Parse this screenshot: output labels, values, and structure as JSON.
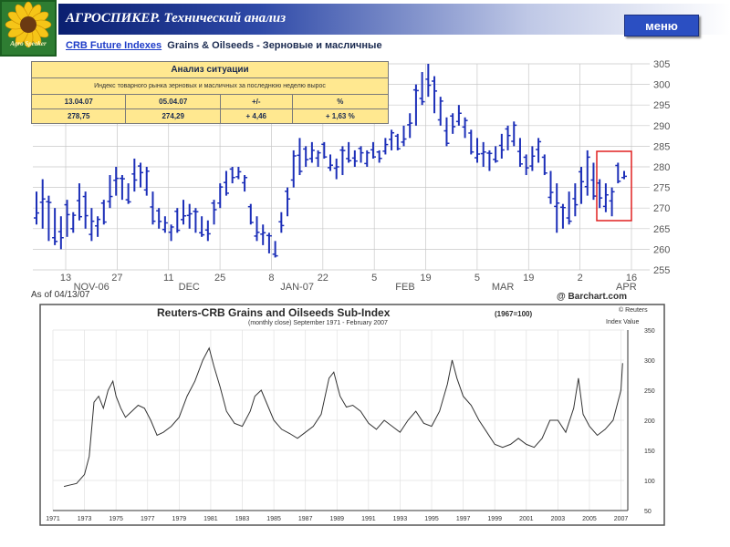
{
  "header": {
    "logo_text": "Agro Speaker",
    "app_title": "АГРОСПИКЕР. Технический анализ",
    "menu_label": "меню",
    "subtitle_link": "CRB Future Indexes",
    "subtitle_text": "Grains & Oilseeds - Зерновые и масличные"
  },
  "info_table": {
    "title": "Анализ ситуации",
    "description": "Индекс товарного рынка зерновых и масличных за последнюю неделю вырос",
    "headers": [
      "13.04.07",
      "05.04.07",
      "+/-",
      "%"
    ],
    "values": [
      "278,75",
      "274,29",
      "+ 4,46",
      "+ 1,63 %"
    ]
  },
  "colors": {
    "price_bars": "#1c2fb8",
    "highlight_box": "#e02020",
    "title_bar": "#0a1f70"
  },
  "chart_data": [
    {
      "type": "ohlc",
      "as_of": "As of 04/13/07",
      "watermark": "@ Barchart.com",
      "ylim": [
        255,
        305
      ],
      "yticks": [
        255,
        260,
        265,
        270,
        275,
        280,
        285,
        290,
        295,
        300,
        305
      ],
      "xticks": [
        "13",
        "27",
        "11",
        "25",
        "8",
        "22",
        "5",
        "19",
        "5",
        "19",
        "2",
        "16"
      ],
      "month_labels": [
        "NOV-06",
        "DEC",
        "JAN-07",
        "FEB",
        "MAR",
        "APR"
      ],
      "bars": [
        [
          274,
          266
        ],
        [
          277,
          265
        ],
        [
          273,
          262
        ],
        [
          270,
          261
        ],
        [
          268,
          260
        ],
        [
          272,
          263
        ],
        [
          269,
          264
        ],
        [
          276,
          267
        ],
        [
          274,
          265
        ],
        [
          270,
          262
        ],
        [
          268,
          263
        ],
        [
          272,
          266
        ],
        [
          278,
          270
        ],
        [
          280,
          273
        ],
        [
          278,
          272
        ],
        [
          276,
          271
        ],
        [
          282,
          274
        ],
        [
          281,
          275
        ],
        [
          280,
          273
        ],
        [
          274,
          266
        ],
        [
          270,
          265
        ],
        [
          268,
          264
        ],
        [
          266,
          262
        ],
        [
          270,
          264
        ],
        [
          272,
          266
        ],
        [
          271,
          265
        ],
        [
          270,
          264
        ],
        [
          268,
          263
        ],
        [
          267,
          262
        ],
        [
          272,
          266
        ],
        [
          276,
          270
        ],
        [
          279,
          273
        ],
        [
          280,
          276
        ],
        [
          280,
          277
        ],
        [
          278,
          274
        ],
        [
          271,
          266
        ],
        [
          268,
          262
        ],
        [
          266,
          261
        ],
        [
          264,
          259
        ],
        [
          262,
          258
        ],
        [
          269,
          264
        ],
        [
          275,
          268
        ],
        [
          284,
          275
        ],
        [
          287,
          278
        ],
        [
          285,
          280
        ],
        [
          286,
          281
        ],
        [
          284,
          280
        ],
        [
          286,
          282
        ],
        [
          283,
          279
        ],
        [
          282,
          277
        ],
        [
          285,
          278
        ],
        [
          286,
          281
        ],
        [
          284,
          280
        ],
        [
          285,
          281
        ],
        [
          284,
          280
        ],
        [
          286,
          282
        ],
        [
          284,
          281
        ],
        [
          287,
          283
        ],
        [
          289,
          284
        ],
        [
          288,
          284
        ],
        [
          290,
          285
        ],
        [
          293,
          287
        ],
        [
          300,
          290
        ],
        [
          303,
          295
        ],
        [
          305,
          297
        ],
        [
          302,
          293
        ],
        [
          297,
          290
        ],
        [
          292,
          285
        ],
        [
          293,
          288
        ],
        [
          295,
          290
        ],
        [
          292,
          287
        ],
        [
          289,
          283
        ],
        [
          287,
          281
        ],
        [
          286,
          280
        ],
        [
          284,
          279
        ],
        [
          285,
          281
        ],
        [
          288,
          282
        ],
        [
          290,
          284
        ],
        [
          291,
          285
        ],
        [
          287,
          280
        ],
        [
          283,
          278
        ],
        [
          285,
          279
        ],
        [
          287,
          281
        ],
        [
          283,
          278
        ],
        [
          279,
          271
        ],
        [
          276,
          264
        ],
        [
          271,
          265
        ],
        [
          274,
          266
        ],
        [
          276,
          268
        ],
        [
          280,
          271
        ],
        [
          284,
          273
        ],
        [
          281,
          272
        ],
        [
          277,
          270
        ],
        [
          276,
          269
        ],
        [
          275,
          268
        ],
        [
          281,
          276
        ],
        [
          279,
          277
        ]
      ]
    },
    {
      "type": "line",
      "title": "Reuters-CRB Grains and Oilseeds Sub-Index",
      "title_note": "(1967=100)",
      "subtitle": "(monthly close) September 1971 - February 2007",
      "source": "© Reuters",
      "ylabel": "Index Value",
      "ylim": [
        50,
        350
      ],
      "yticks": [
        50,
        100,
        150,
        200,
        250,
        300,
        350
      ],
      "xticks": [
        "1971",
        "1973",
        "1975",
        "1977",
        "1979",
        "1981",
        "1983",
        "1985",
        "1987",
        "1989",
        "1991",
        "1993",
        "1995",
        "1997",
        "1999",
        "2001",
        "2003",
        "2005",
        "2007"
      ],
      "x": [
        1971.7,
        1972.0,
        1972.5,
        1973.0,
        1973.3,
        1973.6,
        1973.9,
        1974.2,
        1974.5,
        1974.8,
        1975.0,
        1975.3,
        1975.6,
        1976.0,
        1976.4,
        1976.8,
        1977.2,
        1977.6,
        1978.0,
        1978.5,
        1979.0,
        1979.5,
        1980.0,
        1980.5,
        1980.9,
        1981.2,
        1981.6,
        1982.0,
        1982.5,
        1983.0,
        1983.5,
        1983.8,
        1984.2,
        1984.6,
        1985.0,
        1985.5,
        1986.0,
        1986.5,
        1987.0,
        1987.5,
        1988.0,
        1988.5,
        1988.8,
        1989.2,
        1989.6,
        1990.0,
        1990.5,
        1991.0,
        1991.5,
        1992.0,
        1992.5,
        1993.0,
        1993.5,
        1994.0,
        1994.5,
        1995.0,
        1995.5,
        1996.0,
        1996.3,
        1996.6,
        1997.0,
        1997.5,
        1998.0,
        1998.5,
        1999.0,
        1999.5,
        2000.0,
        2000.5,
        2001.0,
        2001.5,
        2002.0,
        2002.5,
        2003.0,
        2003.5,
        2004.0,
        2004.3,
        2004.6,
        2005.0,
        2005.5,
        2006.0,
        2006.5,
        2007.0,
        2007.1
      ],
      "y": [
        90,
        92,
        95,
        110,
        140,
        230,
        240,
        220,
        250,
        265,
        240,
        220,
        205,
        215,
        225,
        220,
        200,
        175,
        180,
        190,
        205,
        240,
        265,
        300,
        320,
        290,
        255,
        215,
        195,
        190,
        215,
        240,
        250,
        225,
        200,
        185,
        178,
        170,
        180,
        190,
        210,
        270,
        280,
        240,
        222,
        225,
        215,
        195,
        185,
        200,
        190,
        180,
        200,
        215,
        195,
        190,
        215,
        260,
        300,
        270,
        240,
        225,
        200,
        180,
        160,
        155,
        160,
        170,
        160,
        155,
        170,
        200,
        200,
        180,
        220,
        270,
        210,
        190,
        175,
        185,
        200,
        250,
        295
      ]
    }
  ]
}
